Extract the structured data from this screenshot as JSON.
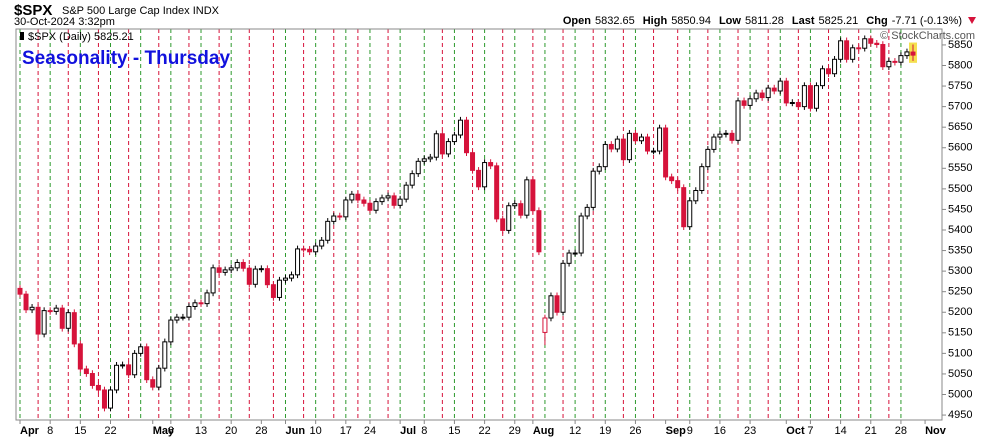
{
  "chart_data": {
    "type": "candlestick",
    "symbol": "$SPX",
    "name": "S&P 500 Large Cap Index",
    "exchange": "INDX",
    "timestamp": "30-Oct-2024 3:32pm",
    "quote": [
      {
        "label": "Open",
        "value": "5832.65"
      },
      {
        "label": "High",
        "value": "5850.94"
      },
      {
        "label": "Low",
        "value": "5811.28"
      },
      {
        "label": "Last",
        "value": "5825.21"
      },
      {
        "label": "Chg",
        "value": "-7.71 (-0.13%)"
      }
    ],
    "watermark": "© StockCharts.com",
    "legend": "$SPX (Daily) 5825.21",
    "title": "Seasonality - Thursday",
    "x": [
      "2024-04-01",
      "2024-04-02",
      "2024-04-03",
      "2024-04-04",
      "2024-04-05",
      "2024-04-08",
      "2024-04-09",
      "2024-04-10",
      "2024-04-11",
      "2024-04-12",
      "2024-04-15",
      "2024-04-16",
      "2024-04-17",
      "2024-04-18",
      "2024-04-19",
      "2024-04-22",
      "2024-04-23",
      "2024-04-24",
      "2024-04-25",
      "2024-04-26",
      "2024-04-29",
      "2024-04-30",
      "2024-05-01",
      "2024-05-02",
      "2024-05-03",
      "2024-05-06",
      "2024-05-07",
      "2024-05-08",
      "2024-05-09",
      "2024-05-10",
      "2024-05-13",
      "2024-05-14",
      "2024-05-15",
      "2024-05-16",
      "2024-05-17",
      "2024-05-20",
      "2024-05-21",
      "2024-05-22",
      "2024-05-23",
      "2024-05-24",
      "2024-05-28",
      "2024-05-29",
      "2024-05-30",
      "2024-05-31",
      "2024-06-03",
      "2024-06-04",
      "2024-06-05",
      "2024-06-06",
      "2024-06-07",
      "2024-06-10",
      "2024-06-11",
      "2024-06-12",
      "2024-06-13",
      "2024-06-14",
      "2024-06-17",
      "2024-06-18",
      "2024-06-20",
      "2024-06-21",
      "2024-06-24",
      "2024-06-25",
      "2024-06-26",
      "2024-06-27",
      "2024-06-28",
      "2024-07-01",
      "2024-07-02",
      "2024-07-03",
      "2024-07-05",
      "2024-07-08",
      "2024-07-09",
      "2024-07-10",
      "2024-07-11",
      "2024-07-12",
      "2024-07-15",
      "2024-07-16",
      "2024-07-17",
      "2024-07-18",
      "2024-07-19",
      "2024-07-22",
      "2024-07-23",
      "2024-07-24",
      "2024-07-25",
      "2024-07-26",
      "2024-07-29",
      "2024-07-30",
      "2024-07-31",
      "2024-08-01",
      "2024-08-02",
      "2024-08-05",
      "2024-08-06",
      "2024-08-07",
      "2024-08-08",
      "2024-08-09",
      "2024-08-12",
      "2024-08-13",
      "2024-08-14",
      "2024-08-15",
      "2024-08-16",
      "2024-08-19",
      "2024-08-20",
      "2024-08-21",
      "2024-08-22",
      "2024-08-23",
      "2024-08-26",
      "2024-08-27",
      "2024-08-28",
      "2024-08-29",
      "2024-08-30",
      "2024-09-03",
      "2024-09-04",
      "2024-09-05",
      "2024-09-06",
      "2024-09-09",
      "2024-09-10",
      "2024-09-11",
      "2024-09-12",
      "2024-09-13",
      "2024-09-16",
      "2024-09-17",
      "2024-09-18",
      "2024-09-19",
      "2024-09-20",
      "2024-09-23",
      "2024-09-24",
      "2024-09-25",
      "2024-09-26",
      "2024-09-27",
      "2024-09-30",
      "2024-10-01",
      "2024-10-02",
      "2024-10-03",
      "2024-10-04",
      "2024-10-07",
      "2024-10-08",
      "2024-10-09",
      "2024-10-10",
      "2024-10-11",
      "2024-10-14",
      "2024-10-15",
      "2024-10-16",
      "2024-10-17",
      "2024-10-18",
      "2024-10-21",
      "2024-10-22",
      "2024-10-23",
      "2024-10-24",
      "2024-10-25",
      "2024-10-28",
      "2024-10-29",
      "2024-10-30"
    ],
    "open": [
      5258,
      5244,
      5206,
      5212,
      5147,
      5204,
      5202,
      5210,
      5161,
      5199,
      5123,
      5062,
      5051,
      5022,
      5011,
      4967,
      5011,
      5071,
      5072,
      5048,
      5100,
      5116,
      5036,
      5018,
      5064,
      5128,
      5181,
      5188,
      5188,
      5214,
      5223,
      5221,
      5247,
      5308,
      5297,
      5303,
      5308,
      5321,
      5307,
      5268,
      5305,
      5306,
      5267,
      5236,
      5278,
      5283,
      5291,
      5354,
      5353,
      5347,
      5361,
      5375,
      5421,
      5434,
      5432,
      5473,
      5487,
      5473,
      5465,
      5448,
      5469,
      5478,
      5483,
      5460,
      5475,
      5509,
      5537,
      5567,
      5573,
      5577,
      5634,
      5585,
      5615,
      5631,
      5667,
      5588,
      5545,
      5505,
      5564,
      5556,
      5427,
      5399,
      5459,
      5464,
      5436,
      5522,
      5447,
      5151,
      5186,
      5240,
      5200,
      5319,
      5344,
      5344,
      5434,
      5455,
      5543,
      5554,
      5608,
      5597,
      5621,
      5571,
      5635,
      5617,
      5626,
      5592,
      5592,
      5648,
      5529,
      5520,
      5503,
      5408,
      5471,
      5496,
      5554,
      5596,
      5626,
      5633,
      5635,
      5618,
      5714,
      5703,
      5719,
      5733,
      5722,
      5745,
      5738,
      5762,
      5709,
      5710,
      5700,
      5751,
      5696,
      5751,
      5792,
      5780,
      5815,
      5860,
      5815,
      5843,
      5842,
      5865,
      5854,
      5851,
      5797,
      5810,
      5808,
      5824,
      5832.65
    ],
    "high": [
      5266,
      5252,
      5220,
      5220,
      5212,
      5212,
      5218,
      5218,
      5207,
      5207,
      5131,
      5070,
      5059,
      5030,
      5019,
      5019,
      5079,
      5080,
      5080,
      5108,
      5124,
      5124,
      5044,
      5072,
      5136,
      5189,
      5196,
      5196,
      5222,
      5231,
      5231,
      5255,
      5316,
      5316,
      5311,
      5316,
      5329,
      5329,
      5315,
      5313,
      5314,
      5314,
      5275,
      5286,
      5291,
      5299,
      5362,
      5362,
      5361,
      5369,
      5383,
      5429,
      5442,
      5442,
      5481,
      5495,
      5495,
      5481,
      5473,
      5477,
      5486,
      5491,
      5491,
      5483,
      5517,
      5545,
      5575,
      5581,
      5585,
      5642,
      5642,
      5623,
      5639,
      5675,
      5675,
      5596,
      5553,
      5572,
      5572,
      5564,
      5435,
      5467,
      5472,
      5472,
      5530,
      5530,
      5455,
      5194,
      5248,
      5248,
      5327,
      5352,
      5352,
      5442,
      5463,
      5551,
      5562,
      5616,
      5616,
      5629,
      5629,
      5643,
      5643,
      5634,
      5634,
      5600,
      5656,
      5656,
      5537,
      5528,
      5511,
      5479,
      5504,
      5562,
      5604,
      5634,
      5641,
      5643,
      5643,
      5722,
      5722,
      5727,
      5741,
      5741,
      5753,
      5753,
      5770,
      5770,
      5718,
      5718,
      5759,
      5759,
      5759,
      5800,
      5800,
      5823,
      5868,
      5868,
      5851,
      5851,
      5873,
      5873,
      5862,
      5859,
      5818,
      5818,
      5832,
      5841,
      5850.94
    ],
    "low": [
      5236,
      5198,
      5198,
      5139,
      5139,
      5194,
      5194,
      5153,
      5153,
      5115,
      5054,
      5043,
      5014,
      5003,
      4959,
      4959,
      5003,
      5063,
      5040,
      5040,
      5092,
      5028,
      5010,
      5010,
      5056,
      5120,
      5173,
      5180,
      5180,
      5206,
      5213,
      5213,
      5239,
      5289,
      5289,
      5295,
      5300,
      5299,
      5260,
      5260,
      5297,
      5259,
      5228,
      5228,
      5270,
      5275,
      5283,
      5345,
      5339,
      5339,
      5353,
      5367,
      5413,
      5424,
      5424,
      5465,
      5465,
      5457,
      5440,
      5440,
      5461,
      5470,
      5452,
      5452,
      5467,
      5501,
      5529,
      5559,
      5565,
      5569,
      5577,
      5577,
      5607,
      5623,
      5580,
      5537,
      5497,
      5497,
      5548,
      5419,
      5391,
      5391,
      5451,
      5428,
      5428,
      5439,
      5339,
      5120,
      5178,
      5192,
      5192,
      5311,
      5336,
      5336,
      5426,
      5447,
      5535,
      5546,
      5589,
      5589,
      5563,
      5563,
      5609,
      5609,
      5584,
      5584,
      5584,
      5521,
      5512,
      5495,
      5400,
      5400,
      5463,
      5488,
      5546,
      5588,
      5618,
      5625,
      5610,
      5610,
      5695,
      5695,
      5711,
      5714,
      5714,
      5730,
      5730,
      5701,
      5701,
      5692,
      5692,
      5688,
      5688,
      5743,
      5772,
      5772,
      5807,
      5807,
      5807,
      5834,
      5834,
      5846,
      5843,
      5789,
      5789,
      5800,
      5800,
      5816,
      5811.28
    ],
    "close": [
      5244,
      5206,
      5212,
      5147,
      5204,
      5202,
      5210,
      5161,
      5199,
      5123,
      5062,
      5051,
      5022,
      5011,
      4967,
      5011,
      5071,
      5072,
      5048,
      5100,
      5116,
      5036,
      5018,
      5064,
      5128,
      5181,
      5188,
      5188,
      5214,
      5223,
      5221,
      5247,
      5308,
      5297,
      5303,
      5308,
      5321,
      5307,
      5268,
      5305,
      5306,
      5267,
      5236,
      5278,
      5283,
      5291,
      5354,
      5353,
      5347,
      5361,
      5375,
      5421,
      5434,
      5432,
      5473,
      5487,
      5473,
      5465,
      5448,
      5469,
      5478,
      5483,
      5460,
      5475,
      5509,
      5537,
      5567,
      5573,
      5577,
      5634,
      5585,
      5615,
      5631,
      5667,
      5588,
      5545,
      5505,
      5564,
      5556,
      5427,
      5399,
      5459,
      5464,
      5436,
      5522,
      5447,
      5347,
      5186,
      5240,
      5200,
      5319,
      5344,
      5344,
      5434,
      5455,
      5543,
      5554,
      5608,
      5597,
      5621,
      5571,
      5635,
      5617,
      5626,
      5592,
      5592,
      5648,
      5529,
      5520,
      5503,
      5408,
      5471,
      5496,
      5554,
      5596,
      5626,
      5633,
      5635,
      5618,
      5714,
      5703,
      5719,
      5733,
      5722,
      5745,
      5738,
      5762,
      5709,
      5710,
      5700,
      5751,
      5696,
      5751,
      5792,
      5780,
      5815,
      5860,
      5815,
      5843,
      5842,
      5865,
      5854,
      5851,
      5797,
      5810,
      5808,
      5824,
      5833,
      5825.21
    ],
    "up_color": "#000000",
    "down_color": "#d6133b",
    "monday_line_color": "#2e9a2e",
    "thursday_line_color": "#d6133b",
    "title_color": "#1111dd",
    "ylim": [
      4938,
      5879
    ],
    "yticks": [
      4950,
      5000,
      5050,
      5100,
      5150,
      5200,
      5250,
      5300,
      5350,
      5400,
      5450,
      5500,
      5550,
      5600,
      5650,
      5700,
      5750,
      5800,
      5850
    ],
    "xticks": [
      {
        "value": "2024-04-01",
        "label": "Apr"
      },
      {
        "value": "2024-04-08",
        "label": "8"
      },
      {
        "value": "2024-04-15",
        "label": "15"
      },
      {
        "value": "2024-04-22",
        "label": "22"
      },
      {
        "value": "2024-05-01",
        "label": "May"
      },
      {
        "value": "2024-05-06",
        "label": "6"
      },
      {
        "value": "2024-05-13",
        "label": "13"
      },
      {
        "value": "2024-05-20",
        "label": "20"
      },
      {
        "value": "2024-05-28",
        "label": "28"
      },
      {
        "value": "2024-06-03",
        "label": "Jun"
      },
      {
        "value": "2024-06-10",
        "label": "10"
      },
      {
        "value": "2024-06-17",
        "label": "17"
      },
      {
        "value": "2024-06-24",
        "label": "24"
      },
      {
        "value": "2024-07-01",
        "label": "Jul"
      },
      {
        "value": "2024-07-08",
        "label": "8"
      },
      {
        "value": "2024-07-15",
        "label": "15"
      },
      {
        "value": "2024-07-22",
        "label": "22"
      },
      {
        "value": "2024-07-29",
        "label": "29"
      },
      {
        "value": "2024-08-01",
        "label": "Aug"
      },
      {
        "value": "2024-08-12",
        "label": "12"
      },
      {
        "value": "2024-08-19",
        "label": "19"
      },
      {
        "value": "2024-08-26",
        "label": "26"
      },
      {
        "value": "2024-09-03",
        "label": "Sep"
      },
      {
        "value": "2024-09-09",
        "label": "9"
      },
      {
        "value": "2024-09-16",
        "label": "16"
      },
      {
        "value": "2024-09-23",
        "label": "23"
      },
      {
        "value": "2024-10-01",
        "label": "Oct"
      },
      {
        "value": "2024-10-07",
        "label": "7"
      },
      {
        "value": "2024-10-14",
        "label": "14"
      },
      {
        "value": "2024-10-21",
        "label": "21"
      },
      {
        "value": "2024-10-28",
        "label": "28"
      },
      {
        "value": "2024-11-01",
        "label": "Nov"
      }
    ]
  }
}
